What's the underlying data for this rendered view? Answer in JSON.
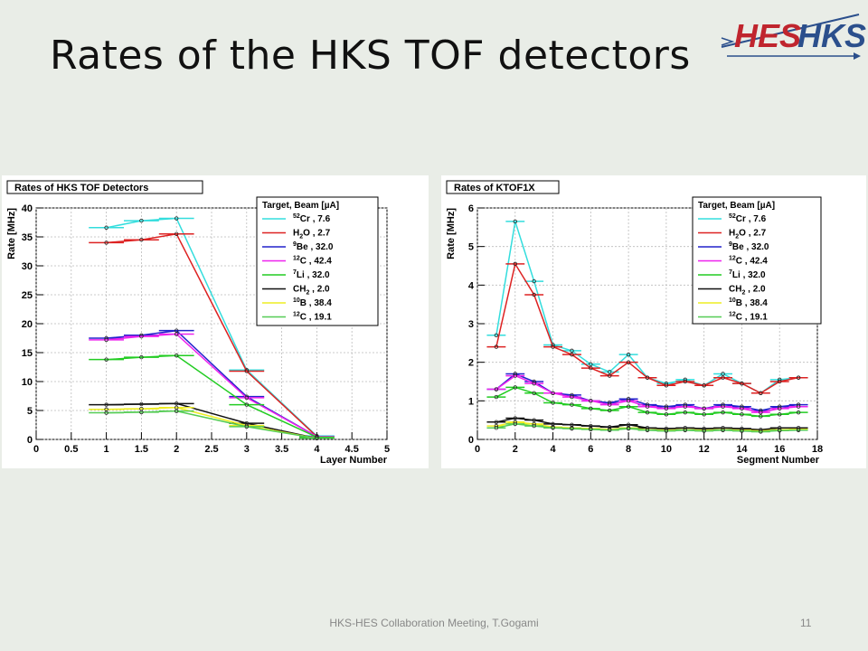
{
  "slide": {
    "title": "Rates of the HKS TOF detectors",
    "footer": "HKS-HES Collaboration Meeting, T.Gogami",
    "page": "11",
    "logo_left": "HES",
    "logo_right": "HKS"
  },
  "legend": {
    "header": "Target, Beam [µA]",
    "entries": [
      {
        "sup": "52",
        "name": "Cr , 7.6",
        "color": "#33dddd"
      },
      {
        "pre": "H",
        "sub": "2",
        "name": "O , 2.7",
        "color": "#dd2222"
      },
      {
        "sup": "9",
        "name": "Be , 32.0",
        "color": "#2222cc"
      },
      {
        "sup": "12",
        "name": "C , 42.4",
        "color": "#ee22ee"
      },
      {
        "sup": "7",
        "name": "Li , 32.0",
        "color": "#22cc22"
      },
      {
        "pre": "CH",
        "sub": "2",
        "name": " , 2.0",
        "color": "#111111"
      },
      {
        "sup": "10",
        "name": "B , 38.4",
        "color": "#eeee22"
      },
      {
        "sup": "12",
        "name": "C , 19.1",
        "color": "#55cc55"
      }
    ]
  },
  "chart_data": [
    {
      "type": "line",
      "title": "Rates of HKS TOF Detectors",
      "xlabel": "Layer Number",
      "ylabel": "Rate [MHz]",
      "xlim": [
        0,
        5
      ],
      "ylim": [
        0,
        40
      ],
      "xticks": [
        "0",
        "0.5",
        "1",
        "1.5",
        "2",
        "2.5",
        "3",
        "3.5",
        "4",
        "4.5",
        "5"
      ],
      "yticks": [
        "0",
        "5",
        "10",
        "15",
        "20",
        "25",
        "30",
        "35",
        "40"
      ],
      "x": [
        1,
        1.5,
        2,
        3,
        4
      ],
      "series": [
        {
          "name": "52Cr , 7.6",
          "color": "#33dddd",
          "values": [
            36.6,
            37.8,
            38.2,
            12.0,
            0.6
          ]
        },
        {
          "name": "H2O , 2.7",
          "color": "#dd2222",
          "values": [
            34.0,
            34.5,
            35.5,
            11.8,
            0.5
          ]
        },
        {
          "name": "9Be , 32.0",
          "color": "#2222cc",
          "values": [
            17.5,
            18.0,
            18.8,
            7.4,
            0.5
          ]
        },
        {
          "name": "12C , 42.4",
          "color": "#ee22ee",
          "values": [
            17.2,
            17.8,
            18.2,
            7.2,
            0.5
          ]
        },
        {
          "name": "7Li , 32.0",
          "color": "#22cc22",
          "values": [
            13.8,
            14.2,
            14.5,
            6.0,
            0.4
          ]
        },
        {
          "name": "CH2 , 2.0",
          "color": "#111111",
          "values": [
            6.0,
            6.1,
            6.2,
            2.8,
            0.2
          ]
        },
        {
          "name": "10B , 38.4",
          "color": "#eeee22",
          "values": [
            5.2,
            5.3,
            5.5,
            2.4,
            0.2
          ]
        },
        {
          "name": "12C , 19.1",
          "color": "#55cc55",
          "values": [
            4.6,
            4.7,
            4.9,
            2.2,
            0.2
          ]
        }
      ]
    },
    {
      "type": "line",
      "title": "Rates of KTOF1X",
      "xlabel": "Segment Number",
      "ylabel": "Rate [MHz]",
      "xlim": [
        0,
        18
      ],
      "ylim": [
        0,
        6
      ],
      "xticks": [
        "0",
        "2",
        "4",
        "6",
        "8",
        "10",
        "12",
        "14",
        "16",
        "18"
      ],
      "yticks": [
        "0",
        "1",
        "2",
        "3",
        "4",
        "5",
        "6"
      ],
      "x": [
        1,
        2,
        3,
        4,
        5,
        6,
        7,
        8,
        9,
        10,
        11,
        12,
        13,
        14,
        15,
        16,
        17
      ],
      "series": [
        {
          "name": "52Cr , 7.6",
          "color": "#33dddd",
          "values": [
            2.7,
            5.65,
            4.1,
            2.45,
            2.3,
            1.95,
            1.75,
            2.2,
            1.6,
            1.45,
            1.55,
            1.4,
            1.7,
            1.45,
            1.2,
            1.55,
            1.6
          ]
        },
        {
          "name": "H2O , 2.7",
          "color": "#dd2222",
          "values": [
            2.4,
            4.55,
            3.75,
            2.4,
            2.2,
            1.85,
            1.65,
            2.0,
            1.6,
            1.4,
            1.5,
            1.4,
            1.6,
            1.45,
            1.2,
            1.5,
            1.6
          ]
        },
        {
          "name": "9Be , 32.0",
          "color": "#2222cc",
          "values": [
            1.3,
            1.7,
            1.5,
            1.2,
            1.15,
            1.0,
            0.95,
            1.05,
            0.9,
            0.85,
            0.9,
            0.8,
            0.9,
            0.85,
            0.75,
            0.85,
            0.9
          ]
        },
        {
          "name": "12C , 42.4",
          "color": "#ee22ee",
          "values": [
            1.3,
            1.65,
            1.45,
            1.2,
            1.1,
            1.0,
            0.9,
            1.0,
            0.85,
            0.8,
            0.85,
            0.8,
            0.85,
            0.8,
            0.7,
            0.8,
            0.85
          ]
        },
        {
          "name": "7Li , 32.0",
          "color": "#22cc22",
          "values": [
            1.1,
            1.35,
            1.2,
            0.95,
            0.9,
            0.8,
            0.75,
            0.85,
            0.7,
            0.65,
            0.7,
            0.65,
            0.7,
            0.65,
            0.6,
            0.65,
            0.7
          ]
        },
        {
          "name": "CH2 , 2.0",
          "color": "#111111",
          "values": [
            0.45,
            0.55,
            0.5,
            0.4,
            0.38,
            0.35,
            0.32,
            0.38,
            0.3,
            0.28,
            0.3,
            0.28,
            0.3,
            0.28,
            0.25,
            0.3,
            0.3
          ]
        },
        {
          "name": "10B , 38.4",
          "color": "#eeee22",
          "values": [
            0.35,
            0.45,
            0.4,
            0.32,
            0.3,
            0.28,
            0.26,
            0.3,
            0.25,
            0.24,
            0.25,
            0.24,
            0.25,
            0.24,
            0.22,
            0.25,
            0.26
          ]
        },
        {
          "name": "12C , 19.1",
          "color": "#55cc55",
          "values": [
            0.3,
            0.4,
            0.35,
            0.3,
            0.28,
            0.26,
            0.24,
            0.28,
            0.24,
            0.22,
            0.24,
            0.22,
            0.24,
            0.22,
            0.2,
            0.23,
            0.24
          ]
        }
      ]
    }
  ]
}
